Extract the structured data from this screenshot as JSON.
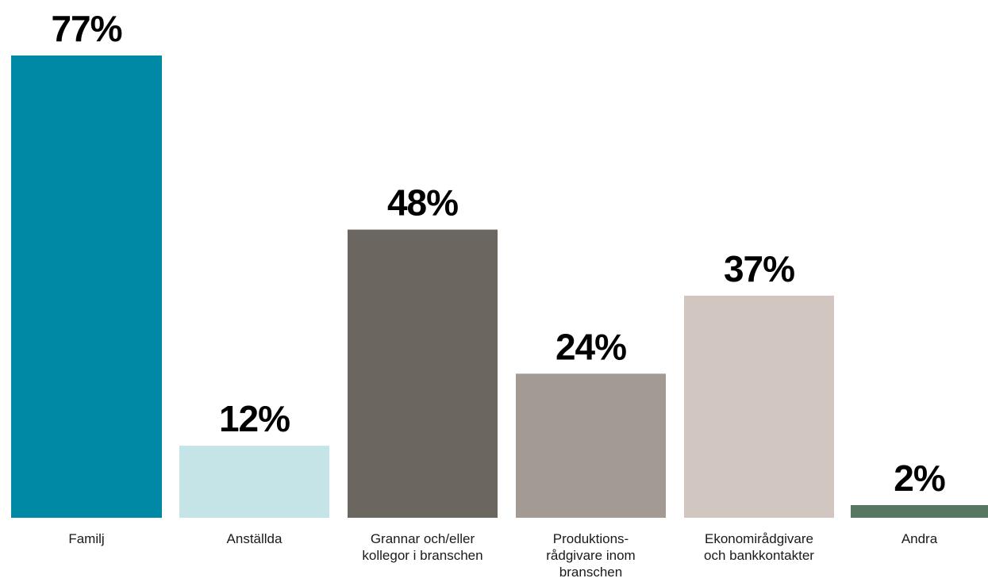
{
  "chart_data": {
    "type": "bar",
    "categories": [
      [
        "Familj"
      ],
      [
        "Anställda"
      ],
      [
        "Grannar och/eller",
        "kollegor i branschen"
      ],
      [
        "Produktions-",
        "rådgivare inom",
        "branschen"
      ],
      [
        "Ekonomirådgivare",
        "och bankkontakter"
      ],
      [
        "Andra"
      ]
    ],
    "values": [
      77,
      12,
      48,
      24,
      37,
      2
    ],
    "value_labels": [
      "77%",
      "12%",
      "48%",
      "24%",
      "37%",
      "2%"
    ],
    "unit": "%",
    "colors": [
      "#0089a4",
      "#c4e4e8",
      "#6c6660",
      "#a39a94",
      "#d1c7c0",
      "#577762"
    ],
    "ylim": [
      0,
      77
    ],
    "grid": false,
    "legend": "none",
    "title": "",
    "xlabel": "",
    "ylabel": ""
  }
}
